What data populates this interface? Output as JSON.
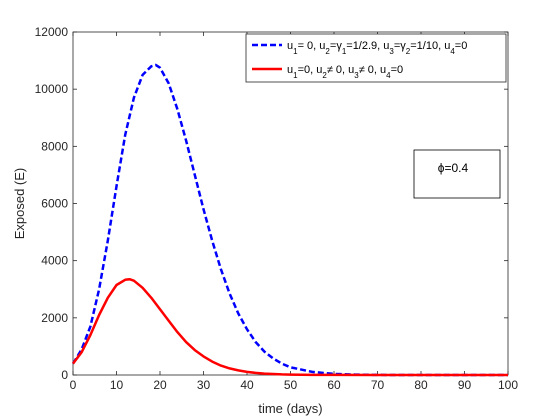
{
  "chart_data": {
    "type": "line",
    "title": "",
    "xlabel": "time (days)",
    "ylabel": "Exposed (E)",
    "xlim": [
      0,
      100
    ],
    "ylim": [
      0,
      12000
    ],
    "xticks": [
      0,
      10,
      20,
      30,
      40,
      50,
      60,
      70,
      80,
      90,
      100
    ],
    "yticks": [
      0,
      2000,
      4000,
      6000,
      8000,
      10000,
      12000
    ],
    "grid": false,
    "legend_position": "top-right",
    "annotation": "ϕ=0.4",
    "series": [
      {
        "name": "u1= 0, u2=γ1=1/2.9, u3=γ2=1/10, u4=0",
        "color": "#0000ff",
        "style": "dashed",
        "x": [
          0,
          2,
          4,
          6,
          8,
          10,
          12,
          14,
          16,
          18,
          19,
          20,
          22,
          24,
          26,
          28,
          30,
          32,
          34,
          36,
          38,
          40,
          42,
          44,
          46,
          48,
          50,
          55,
          60,
          65,
          70,
          75,
          80,
          90,
          100
        ],
        "y": [
          400,
          900,
          1700,
          3000,
          4700,
          6600,
          8400,
          9700,
          10500,
          10800,
          10850,
          10750,
          10200,
          9300,
          8200,
          7000,
          5800,
          4700,
          3700,
          2850,
          2150,
          1600,
          1150,
          820,
          580,
          400,
          270,
          110,
          40,
          15,
          5,
          0,
          0,
          0,
          0
        ]
      },
      {
        "name": "u1=0, u2≠ 0, u3≠ 0, u4=0",
        "color": "#ff0000",
        "style": "solid",
        "x": [
          0,
          2,
          4,
          6,
          8,
          10,
          12,
          13,
          14,
          16,
          18,
          20,
          22,
          24,
          26,
          28,
          30,
          32,
          34,
          36,
          38,
          40,
          42,
          44,
          46,
          48,
          50,
          55,
          60,
          70,
          80,
          90,
          100
        ],
        "y": [
          400,
          800,
          1400,
          2100,
          2700,
          3150,
          3330,
          3350,
          3300,
          3050,
          2700,
          2300,
          1900,
          1500,
          1150,
          870,
          650,
          470,
          330,
          230,
          160,
          110,
          75,
          50,
          35,
          22,
          15,
          5,
          2,
          0,
          0,
          0,
          0
        ]
      }
    ]
  }
}
